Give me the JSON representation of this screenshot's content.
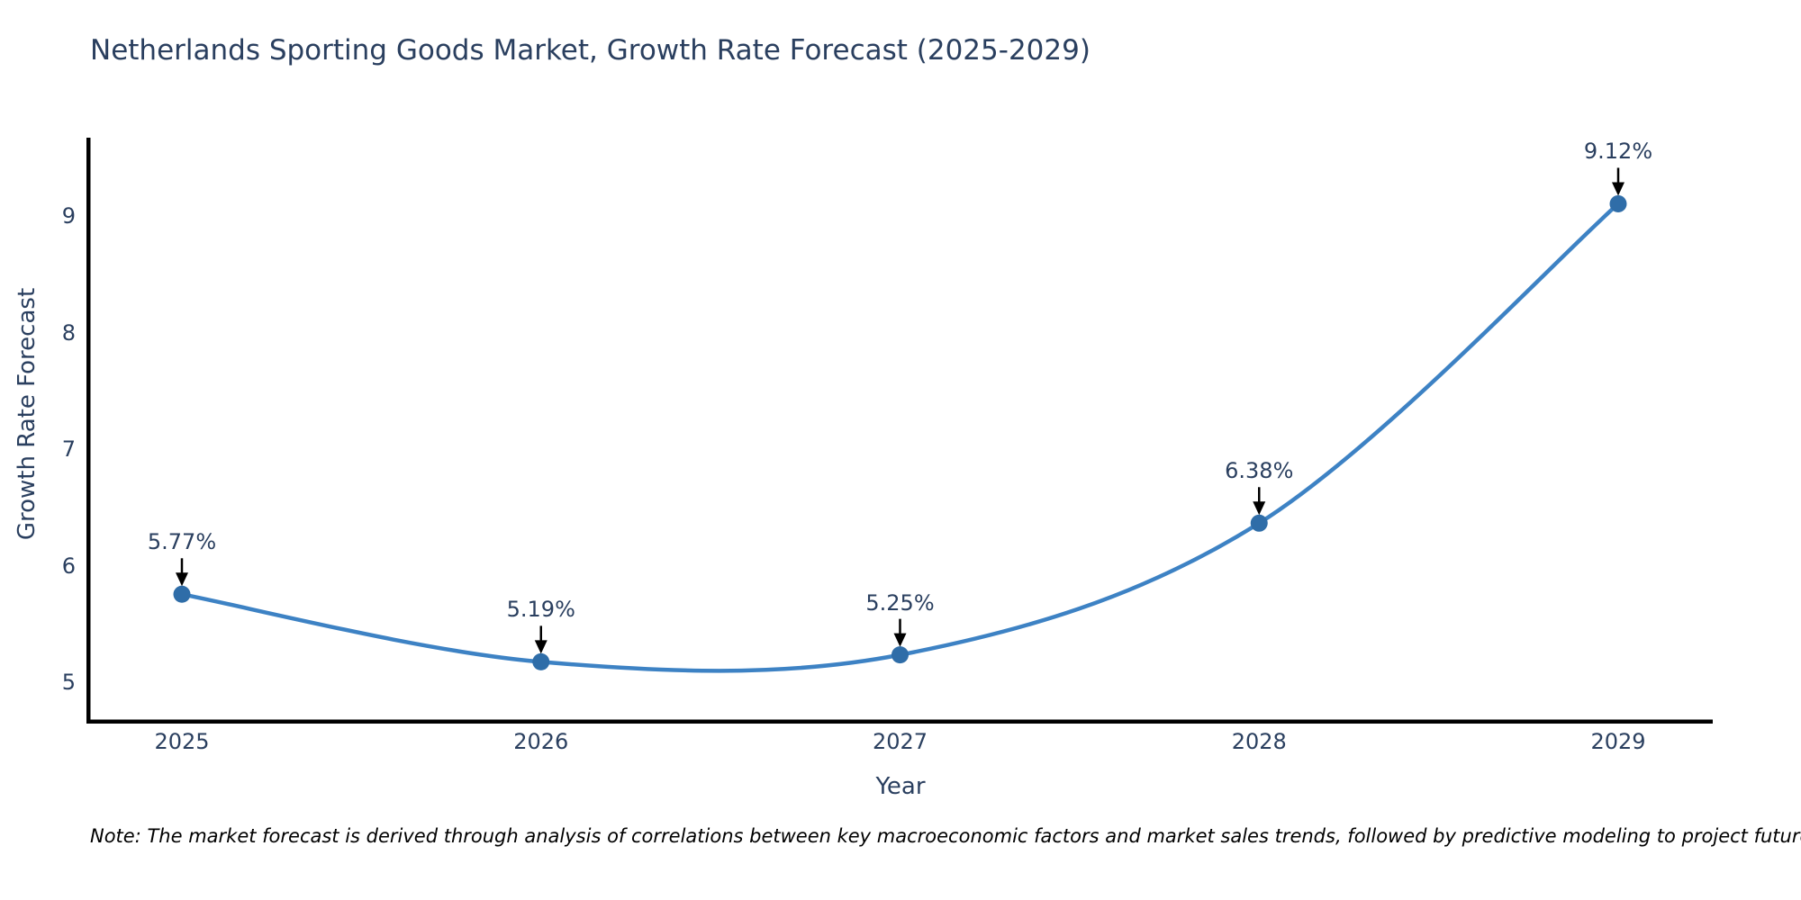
{
  "title": "Netherlands Sporting Goods Market, Growth Rate Forecast (2025-2029)",
  "note": "Note: The market forecast is derived through analysis of correlations between key macroeconomic factors and market sales trends, followed by predictive modeling to project future sales.",
  "chart_data": {
    "type": "line",
    "title": "Netherlands Sporting Goods Market, Growth Rate Forecast (2025-2029)",
    "xlabel": "Year",
    "ylabel": "Growth Rate Forecast",
    "categories": [
      "2025",
      "2026",
      "2027",
      "2028",
      "2029"
    ],
    "values": [
      5.77,
      5.19,
      5.25,
      6.38,
      9.12
    ],
    "point_labels": [
      "5.77%",
      "5.19%",
      "5.25%",
      "6.38%",
      "9.12%"
    ],
    "y_ticks": [
      5,
      6,
      7,
      8,
      9
    ],
    "ylim": [
      4.69,
      9.69
    ],
    "line_shape": "spline",
    "grid": false,
    "legend": "none",
    "annotation_arrows": true,
    "colors": {
      "line": "#3d82c4",
      "marker": "#2f6da8",
      "text": "#2a3f5f",
      "axis": "#000000",
      "arrow": "#000000",
      "note_text": "#000000",
      "background": "#ffffff"
    }
  }
}
